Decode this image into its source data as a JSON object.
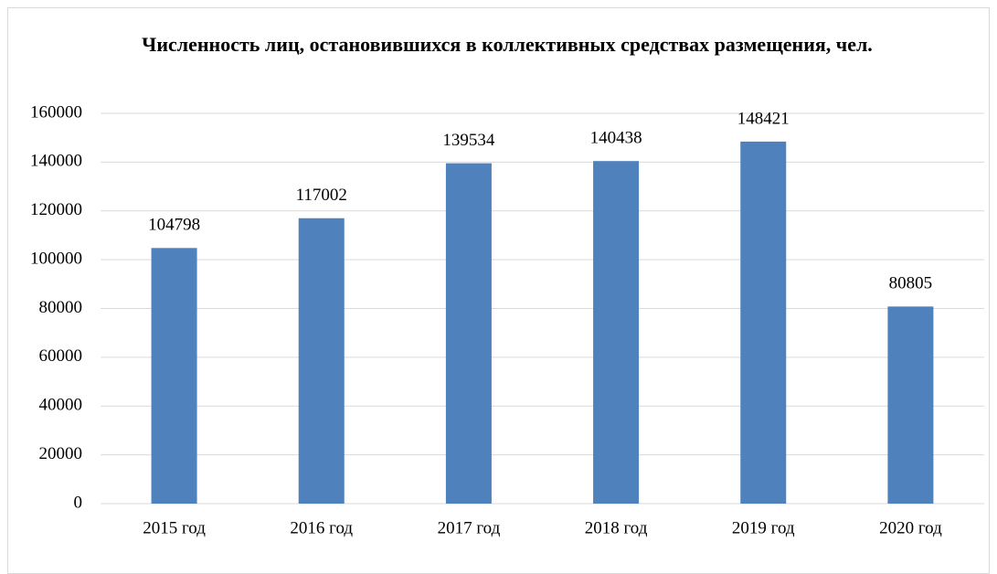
{
  "chart_data": {
    "type": "bar",
    "title": "Численность лиц, остановившихся в коллективных средствах размещения, чел.",
    "categories": [
      "2015 год",
      "2016 год",
      "2017 год",
      "2018 год",
      "2019 год",
      "2020 год"
    ],
    "values": [
      104798,
      117002,
      139534,
      140438,
      148421,
      80805
    ],
    "color": "#4f81bd",
    "ylim": [
      0,
      160000
    ],
    "yticks": [
      0,
      20000,
      40000,
      60000,
      80000,
      100000,
      120000,
      140000,
      160000
    ],
    "grid": true,
    "data_labels": true
  }
}
